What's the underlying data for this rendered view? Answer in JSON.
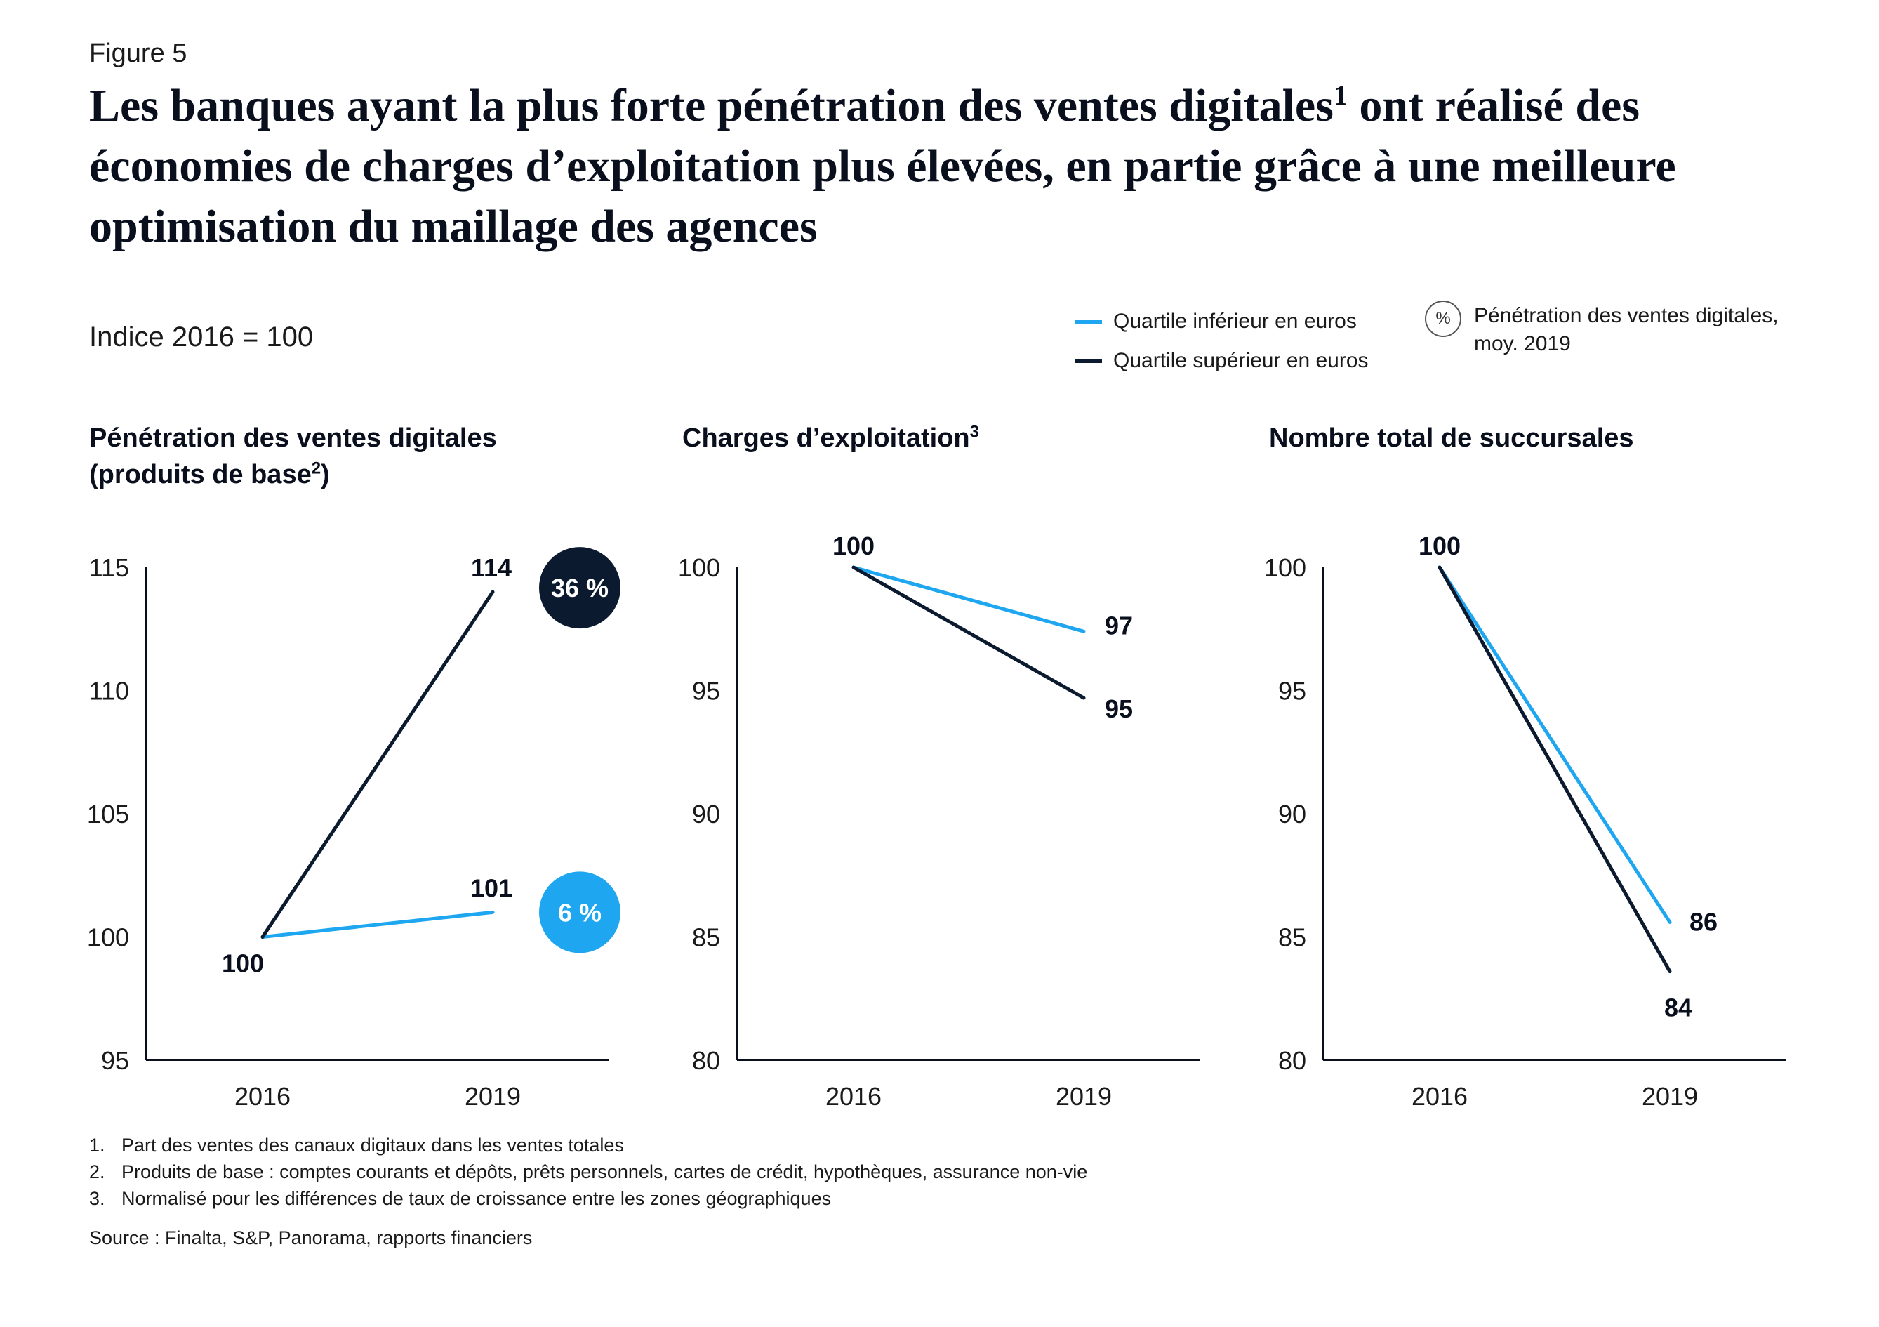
{
  "figure_label": "Figure 5",
  "title": {
    "part1": "Les banques ayant la plus forte pénétration des ventes digitales",
    "sup": "1",
    "part2": " ont réalisé des économies de charges d’exploitation plus élevées, en partie grâce à une meilleure optimisation du maillage des agences"
  },
  "index_label": "Indice 2016 = 100",
  "legend": {
    "lower": {
      "label": "Quartile inférieur en euros",
      "color": "#1ea7f0"
    },
    "upper": {
      "label": "Quartile supérieur en euros",
      "color": "#0b1a2e"
    },
    "pct_symbol": "%",
    "pct_label": "Pénétration des ventes digitales, moy. 2019"
  },
  "chart_titles": [
    {
      "text": "Pénétration des ventes digitales (produits de base",
      "sup": "2",
      "after": ")"
    },
    {
      "text": "Charges d’exploitation",
      "sup": "3",
      "after": ""
    },
    {
      "text": "Nombre total de succursales",
      "sup": "",
      "after": ""
    }
  ],
  "chart_data": [
    {
      "type": "line",
      "x": [
        "2016",
        "2019"
      ],
      "ylim": [
        95,
        115
      ],
      "yticks": [
        95,
        100,
        105,
        110,
        115
      ],
      "series": [
        {
          "name": "Quartile inférieur en euros",
          "values": [
            100,
            101
          ],
          "color": "#1ea7f0",
          "point_labels": [
            "100",
            "101"
          ],
          "badge": "6 %"
        },
        {
          "name": "Quartile supérieur en euros",
          "values": [
            100,
            114
          ],
          "color": "#0b1a2e",
          "point_labels": [
            "",
            "114"
          ],
          "badge": "36 %"
        }
      ]
    },
    {
      "type": "line",
      "x": [
        "2016",
        "2019"
      ],
      "ylim": [
        80,
        100
      ],
      "yticks": [
        80,
        85,
        90,
        95,
        100
      ],
      "series": [
        {
          "name": "Quartile inférieur en euros",
          "values": [
            100,
            97.4
          ],
          "color": "#1ea7f0",
          "point_labels": [
            "100",
            "97"
          ]
        },
        {
          "name": "Quartile supérieur en euros",
          "values": [
            100,
            94.7
          ],
          "color": "#0b1a2e",
          "point_labels": [
            "",
            "95"
          ]
        }
      ]
    },
    {
      "type": "line",
      "x": [
        "2016",
        "2019"
      ],
      "ylim": [
        80,
        100
      ],
      "yticks": [
        80,
        85,
        90,
        95,
        100
      ],
      "series": [
        {
          "name": "Quartile inférieur en euros",
          "values": [
            100,
            85.6
          ],
          "color": "#1ea7f0",
          "point_labels": [
            "100",
            "86"
          ]
        },
        {
          "name": "Quartile supérieur en euros",
          "values": [
            100,
            83.6
          ],
          "color": "#0b1a2e",
          "point_labels": [
            "",
            "84"
          ]
        }
      ]
    }
  ],
  "footnotes": [
    {
      "num": "1.",
      "text": "Part des ventes des canaux digitaux dans les ventes totales"
    },
    {
      "num": "2.",
      "text": "Produits de base : comptes courants et dépôts, prêts personnels, cartes de crédit, hypothèques, assurance non-vie"
    },
    {
      "num": "3.",
      "text": "Normalisé pour les différences de taux de croissance entre les zones géographiques"
    }
  ],
  "source": "Source : Finalta, S&P, Panorama, rapports financiers"
}
